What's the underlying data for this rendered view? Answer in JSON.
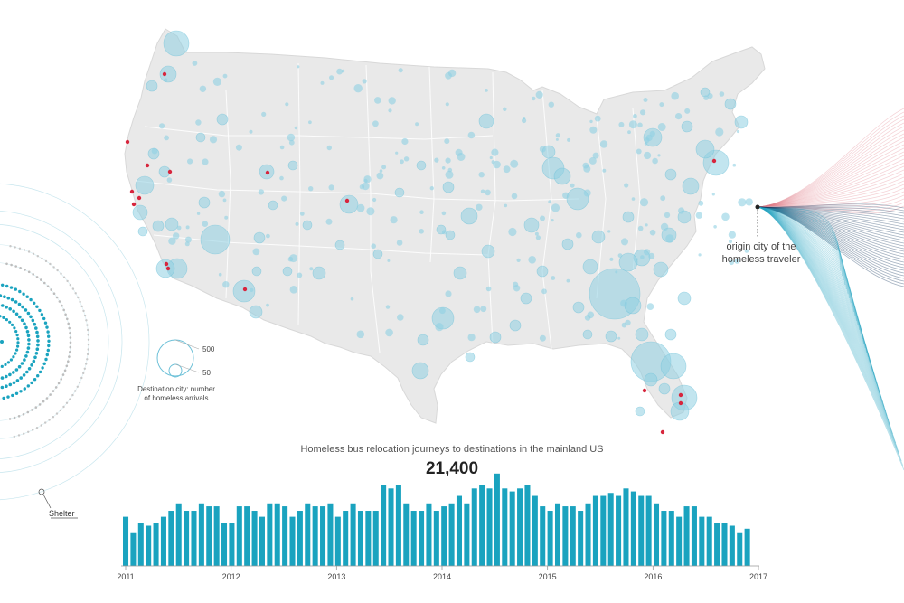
{
  "legend": {
    "caption": "Destination city: number of homeless arrivals",
    "size_large_label": "500",
    "size_small_label": "50"
  },
  "origin_label": "origin city of the homeless traveler",
  "shelter_label": "Shelter",
  "colors": {
    "bubble_fill": "#8fd0e2",
    "bubble_stroke": "#6ec1d8",
    "origin_dot": "#d7263d",
    "bar": "#1aa3bf",
    "map_land": "#e9e9e9",
    "flow_red": "#e07a86",
    "flow_dark": "#1d3f63",
    "flow_teal": "#2aa5c2"
  },
  "chart_data": {
    "type": "bar",
    "title": "Homeless bus relocation journeys to destinations in the mainland US",
    "total_label": "21,400",
    "x_tick_labels": [
      "2011",
      "2012",
      "2013",
      "2014",
      "2015",
      "2016",
      "2017"
    ],
    "values": [
      33,
      22,
      29,
      27,
      29,
      33,
      37,
      42,
      37,
      37,
      42,
      40,
      40,
      29,
      29,
      40,
      40,
      37,
      33,
      42,
      42,
      40,
      33,
      37,
      42,
      40,
      40,
      42,
      33,
      37,
      42,
      37,
      37,
      37,
      54,
      52,
      54,
      42,
      37,
      37,
      42,
      37,
      40,
      42,
      47,
      42,
      52,
      54,
      52,
      62,
      52,
      50,
      52,
      54,
      47,
      40,
      37,
      42,
      40,
      40,
      37,
      42,
      47,
      47,
      49,
      47,
      52,
      50,
      47,
      47,
      42,
      37,
      37,
      33,
      40,
      40,
      33,
      33,
      29,
      29,
      27,
      22,
      25
    ]
  }
}
